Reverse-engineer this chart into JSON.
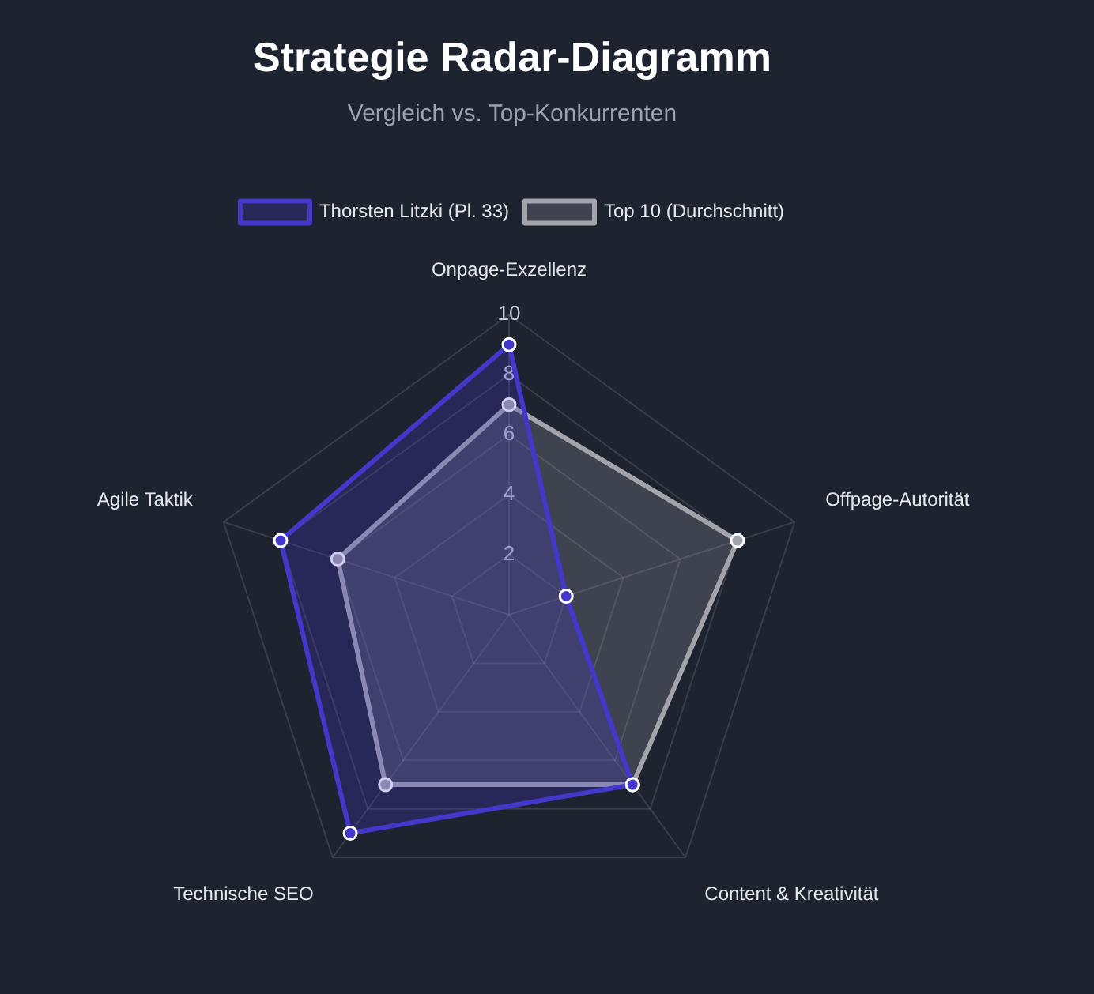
{
  "chart_data": {
    "type": "radar",
    "title": "Strategie Radar-Diagramm",
    "subtitle": "Vergleich vs. Top-Konkurrenten",
    "categories": [
      "Onpage-Exzellenz",
      "Offpage-Autorität",
      "Content & Kreativität",
      "Technische SEO",
      "Agile Taktik"
    ],
    "series": [
      {
        "name": "Thorsten Litzki (Pl. 33)",
        "color": "#4338ca",
        "values": [
          9,
          2,
          7,
          9,
          8
        ]
      },
      {
        "name": "Top 10 (Durchschnitt)",
        "color": "#a3a3ab",
        "values": [
          7,
          8,
          7,
          7,
          6
        ]
      }
    ],
    "ylim": [
      0,
      10
    ],
    "yticks": [
      2,
      4,
      6,
      8,
      10
    ],
    "grid": true,
    "legend": "top",
    "marker": "circle",
    "line_style": "solid"
  }
}
